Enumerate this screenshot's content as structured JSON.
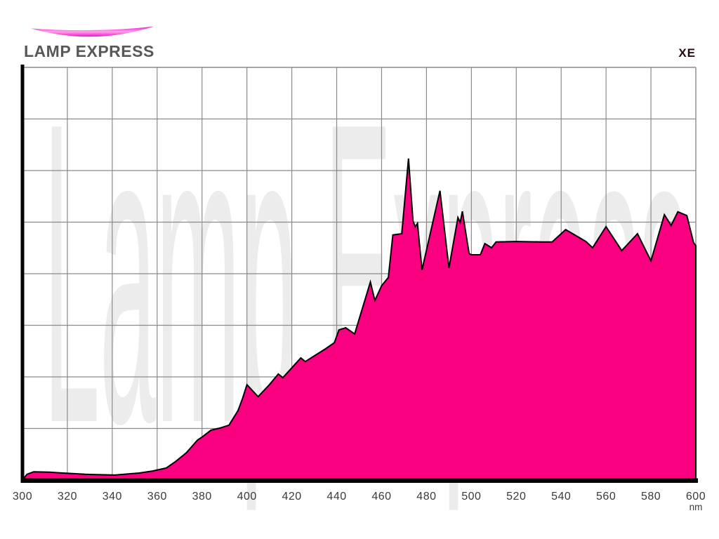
{
  "brand": {
    "name": "LAMP EXPRESS"
  },
  "chart": {
    "series_label": "XE",
    "watermark": "Lamp Express"
  },
  "chart_data": {
    "type": "area",
    "title": "",
    "series_name": "XE",
    "watermark": "Lamp Express",
    "xlabel": "nm",
    "x_range": [
      300,
      600
    ],
    "x_ticks": [
      300,
      320,
      340,
      360,
      380,
      400,
      420,
      440,
      460,
      480,
      500,
      520,
      540,
      560,
      580,
      600
    ],
    "x_unit_label": "nm",
    "y_range_pct": [
      0,
      100
    ],
    "grid": {
      "x_divisions": 15,
      "y_divisions": 8,
      "grid_on": true
    },
    "legend": "none",
    "points_nm_pct": [
      [
        300,
        0
      ],
      [
        302,
        1.4
      ],
      [
        305,
        2
      ],
      [
        312,
        1.9
      ],
      [
        318,
        1.7
      ],
      [
        328,
        1.4
      ],
      [
        341,
        1.2
      ],
      [
        352,
        1.7
      ],
      [
        358,
        2.2
      ],
      [
        364,
        2.9
      ],
      [
        368,
        4.4
      ],
      [
        373,
        6.6
      ],
      [
        378,
        9.7
      ],
      [
        380,
        10.4
      ],
      [
        384,
        12.1
      ],
      [
        388,
        12.6
      ],
      [
        392,
        13.3
      ],
      [
        396,
        16.8
      ],
      [
        398,
        19.7
      ],
      [
        400,
        23.1
      ],
      [
        405,
        20.2
      ],
      [
        410,
        23.1
      ],
      [
        414,
        25.7
      ],
      [
        416,
        24.8
      ],
      [
        424,
        29.6
      ],
      [
        426,
        28.7
      ],
      [
        435,
        31.8
      ],
      [
        439,
        33.3
      ],
      [
        441,
        36.4
      ],
      [
        444,
        36.9
      ],
      [
        448,
        35.4
      ],
      [
        455,
        48
      ],
      [
        457,
        43.5
      ],
      [
        460,
        47.1
      ],
      [
        463,
        49.1
      ],
      [
        465,
        59.4
      ],
      [
        469,
        59.7
      ],
      [
        472,
        77.9
      ],
      [
        474,
        62.8
      ],
      [
        475,
        61.4
      ],
      [
        476,
        62.2
      ],
      [
        478,
        50.9
      ],
      [
        486,
        70.1
      ],
      [
        490,
        51.4
      ],
      [
        494,
        63.6
      ],
      [
        495,
        62.4
      ],
      [
        496,
        65.1
      ],
      [
        499,
        54.9
      ],
      [
        500,
        54.6
      ],
      [
        504,
        54.6
      ],
      [
        506,
        57.3
      ],
      [
        509,
        56.3
      ],
      [
        511,
        57.7
      ],
      [
        520,
        57.8
      ],
      [
        531,
        57.7
      ],
      [
        536,
        57.7
      ],
      [
        542,
        60.7
      ],
      [
        551,
        57.8
      ],
      [
        554,
        56.3
      ],
      [
        560,
        61.4
      ],
      [
        567,
        55.6
      ],
      [
        574,
        59.7
      ],
      [
        580,
        53.1
      ],
      [
        586,
        64.3
      ],
      [
        589,
        61.7
      ],
      [
        592,
        65
      ],
      [
        596,
        64.1
      ],
      [
        599,
        57.5
      ],
      [
        600,
        56.8
      ]
    ]
  },
  "colors": {
    "spectrum_fill": "#FA0080",
    "spectrum_outline": "#000000",
    "grid_line": "#8A8A8A",
    "plot_border": "#8A8A8A",
    "axis_black": "#000000",
    "watermark_text": "#ECECEC",
    "tick_label": "#3A3A3A",
    "brand_text": "#58585A",
    "series_label_color": "#26090F",
    "swoosh_gradient": [
      "#F318D0",
      "#FF9FEC",
      "#ED14C6"
    ]
  }
}
